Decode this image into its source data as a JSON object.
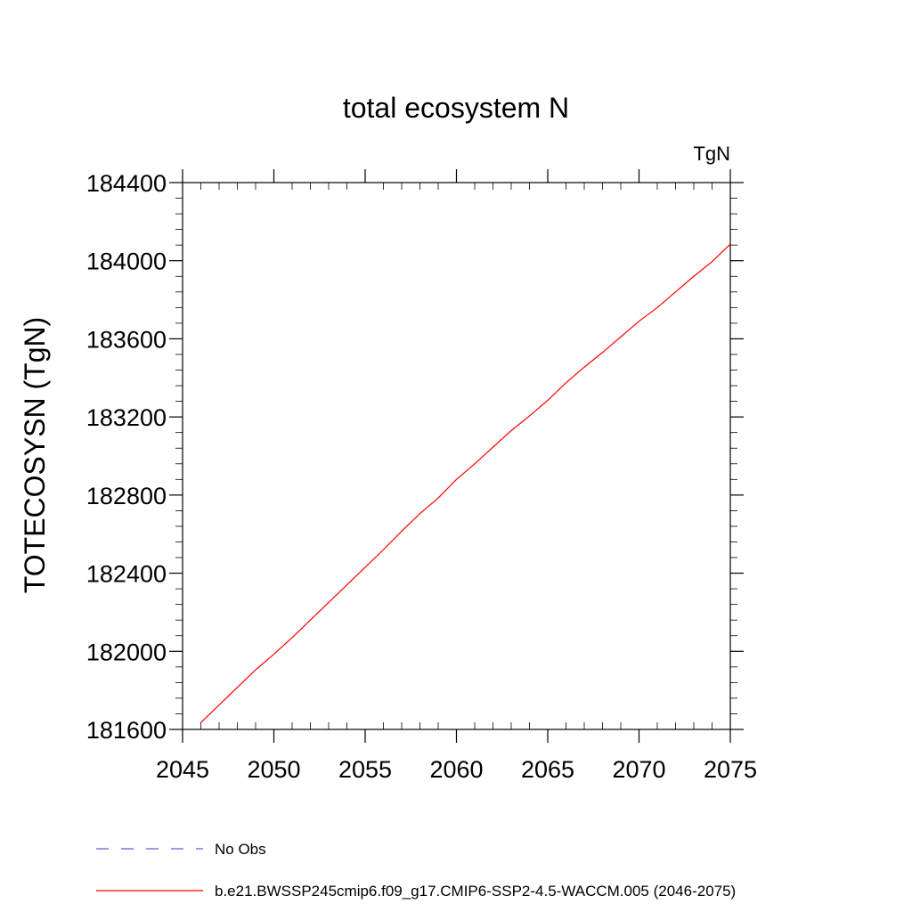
{
  "chart_data": {
    "type": "line",
    "title": "total ecosystem N",
    "units_label": "TgN",
    "ylabel": "TOTECOSYSN  (TgN)",
    "xlabel": "",
    "xlim": [
      2045,
      2075
    ],
    "ylim": [
      181600,
      184400
    ],
    "x_ticks": [
      2045,
      2050,
      2055,
      2060,
      2065,
      2070,
      2075
    ],
    "x_tick_labels": [
      "2045",
      "2050",
      "2055",
      "2060",
      "2065",
      "2070",
      "2075"
    ],
    "y_ticks": [
      181600,
      182000,
      182400,
      182800,
      183200,
      183600,
      184000,
      184400
    ],
    "y_tick_labels": [
      "181600",
      "182000",
      "182400",
      "182800",
      "183200",
      "183600",
      "184000",
      "184400"
    ],
    "grid": false,
    "legend_position": "bottom",
    "series": [
      {
        "name": "No Obs",
        "color": "#6a5acd",
        "dash": "dashed",
        "x": [],
        "y": []
      },
      {
        "name": "b.e21.BWSSP245cmip6.f09_g17.CMIP6-SSP2-4.5-WACCM.005 (2046-2075)",
        "color": "#ff0000",
        "dash": "solid",
        "x": [
          2046,
          2047,
          2048,
          2049,
          2050,
          2051,
          2052,
          2053,
          2054,
          2055,
          2056,
          2057,
          2058,
          2059,
          2060,
          2061,
          2062,
          2063,
          2064,
          2065,
          2066,
          2067,
          2068,
          2069,
          2070,
          2071,
          2072,
          2073,
          2074,
          2075
        ],
        "y": [
          181635,
          181725,
          181815,
          181905,
          181985,
          182070,
          182160,
          182250,
          182340,
          182430,
          182520,
          182615,
          182705,
          182785,
          182880,
          182960,
          183045,
          183130,
          183205,
          183285,
          183375,
          183455,
          183530,
          183610,
          183690,
          183760,
          183840,
          183920,
          183995,
          184085
        ]
      }
    ]
  }
}
